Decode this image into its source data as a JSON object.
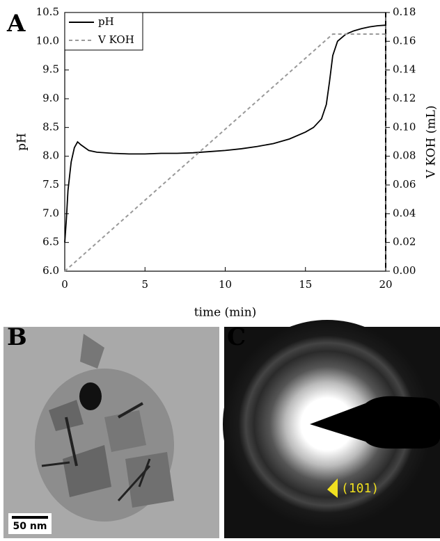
{
  "chart_data": {
    "type": "line",
    "x_label": "time (min)",
    "y_label": "pH",
    "y2_label": "V KOH (mL)",
    "xlim": [
      0,
      20
    ],
    "xticks": [
      0,
      5,
      10,
      15,
      20
    ],
    "ylim": [
      6.0,
      10.5
    ],
    "yticks": [
      {
        "value": 6,
        "label": "6.0"
      },
      {
        "value": 6.5,
        "label": "6.5"
      },
      {
        "value": 7,
        "label": "7.0"
      },
      {
        "value": 7.5,
        "label": "7.5"
      },
      {
        "value": 8,
        "label": "8.0"
      },
      {
        "value": 8.5,
        "label": "8.5"
      },
      {
        "value": 9,
        "label": "9.0"
      },
      {
        "value": 9.5,
        "label": "9.5"
      },
      {
        "value": 10,
        "label": "10.0"
      },
      {
        "value": 10.5,
        "label": "10.5"
      }
    ],
    "y2lim": [
      0,
      0.18
    ],
    "y2ticks": [
      {
        "value": 0,
        "label": "0.00"
      },
      {
        "value": 0.02,
        "label": "0.02"
      },
      {
        "value": 0.04,
        "label": "0.04"
      },
      {
        "value": 0.06,
        "label": "0.06"
      },
      {
        "value": 0.08,
        "label": "0.08"
      },
      {
        "value": 0.1,
        "label": "0.10"
      },
      {
        "value": 0.12,
        "label": "0.12"
      },
      {
        "value": 0.14,
        "label": "0.14"
      },
      {
        "value": 0.16,
        "label": "0.16"
      },
      {
        "value": 0.18,
        "label": "0.18"
      }
    ],
    "legend": "upper left",
    "series": [
      {
        "name": "pH",
        "color": "#000000",
        "style": "solid",
        "x": [
          0,
          0.1,
          0.2,
          0.4,
          0.6,
          0.8,
          1,
          1.5,
          2,
          3,
          4,
          5,
          6,
          7,
          8,
          9,
          10,
          11,
          12,
          13,
          14,
          15,
          15.5,
          16,
          16.3,
          16.5,
          16.7,
          17,
          17.5,
          18,
          18.5,
          19,
          19.5,
          20
        ],
        "values": [
          6.5,
          6.9,
          7.4,
          7.9,
          8.15,
          8.25,
          8.2,
          8.1,
          8.07,
          8.05,
          8.04,
          8.04,
          8.05,
          8.05,
          8.06,
          8.08,
          8.1,
          8.13,
          8.17,
          8.22,
          8.3,
          8.42,
          8.5,
          8.65,
          8.9,
          9.3,
          9.75,
          10.0,
          10.12,
          10.18,
          10.22,
          10.25,
          10.27,
          10.28
        ]
      },
      {
        "name": "V KOH",
        "color": "#999999",
        "style": "dashed",
        "axis": "y2",
        "x": [
          0,
          16.7,
          20
        ],
        "values": [
          0,
          0.165,
          0.165
        ]
      }
    ]
  },
  "panel_labels": [
    "A",
    "B",
    "C"
  ],
  "images": {
    "tem": {
      "scale_bar": "50 nm"
    },
    "saed": {
      "annotation": "(101)"
    }
  }
}
